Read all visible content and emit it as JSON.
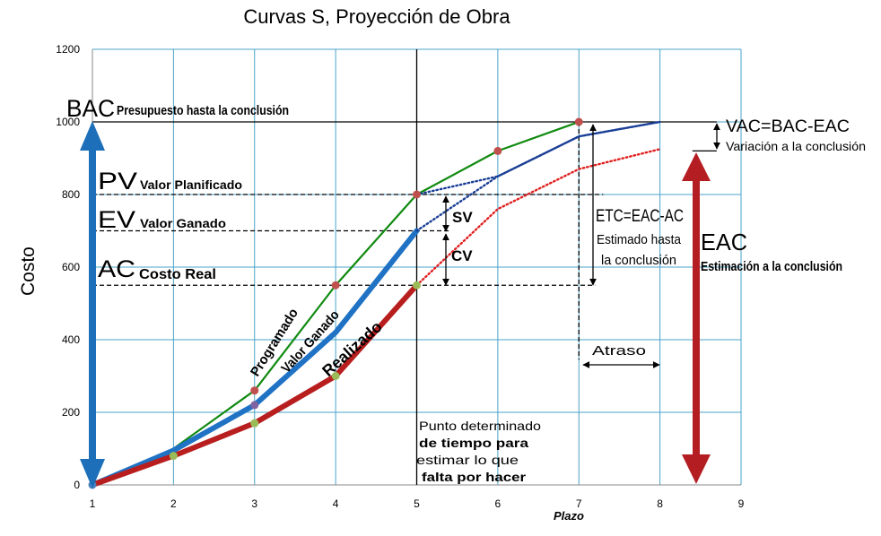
{
  "chart_data": {
    "type": "line",
    "title": "Curvas S, Proyección de Obra",
    "xlabel": "Plazo",
    "ylabel": "Costo",
    "xlim": [
      1,
      9
    ],
    "ylim": [
      0,
      1200
    ],
    "x_ticks": [
      "1",
      "2",
      "3",
      "4",
      "5",
      "6",
      "7",
      "8",
      "9"
    ],
    "y_ticks": [
      "0",
      "200",
      "400",
      "600",
      "800",
      "1000",
      "1200"
    ],
    "grid": true,
    "series": [
      {
        "name": "Programado",
        "color": "#108a10",
        "points": [
          [
            1,
            0
          ],
          [
            2,
            100
          ],
          [
            3,
            260
          ],
          [
            4,
            550
          ],
          [
            5,
            800
          ],
          [
            6,
            920
          ],
          [
            7,
            1000
          ]
        ]
      },
      {
        "name": "Programado",
        "color": "#1a3f96",
        "dotted": true,
        "points": [
          [
            5,
            800
          ],
          [
            6,
            850
          ],
          [
            7,
            960
          ],
          [
            8,
            1000
          ]
        ]
      },
      {
        "name": "Valor Ganado",
        "color": "#1f72c4",
        "points": [
          [
            1,
            0
          ],
          [
            2,
            95
          ],
          [
            3,
            220
          ],
          [
            4,
            420
          ],
          [
            5,
            700
          ]
        ]
      },
      {
        "name": "Valor Ganado",
        "color": "#1a3f96",
        "dotted": true,
        "points": [
          [
            5,
            700
          ],
          [
            6,
            850
          ],
          [
            7,
            960
          ],
          [
            8,
            1000
          ]
        ]
      },
      {
        "name": "Realizado",
        "color": "#b81e1e",
        "points": [
          [
            1,
            0
          ],
          [
            2,
            80
          ],
          [
            3,
            170
          ],
          [
            4,
            300
          ],
          [
            5,
            550
          ]
        ]
      },
      {
        "name": "Realizado",
        "color": "#e02020",
        "dotted": true,
        "points": [
          [
            5,
            550
          ],
          [
            6,
            760
          ],
          [
            7,
            870
          ],
          [
            8,
            925
          ]
        ]
      }
    ],
    "markers": [
      {
        "x": 3,
        "y": 260,
        "color": "#c0504d"
      },
      {
        "x": 4,
        "y": 550,
        "color": "#c0504d"
      },
      {
        "x": 5,
        "y": 800,
        "color": "#c0504d"
      },
      {
        "x": 6,
        "y": 920,
        "color": "#c0504d"
      },
      {
        "x": 7,
        "y": 1000,
        "color": "#c0504d"
      },
      {
        "x": 2,
        "y": 80,
        "color": "#9bbb59"
      },
      {
        "x": 3,
        "y": 170,
        "color": "#9bbb59"
      },
      {
        "x": 4,
        "y": 300,
        "color": "#9bbb59"
      },
      {
        "x": 5,
        "y": 550,
        "color": "#9bbb59"
      },
      {
        "x": 3,
        "y": 220,
        "color": "#8064a2"
      },
      {
        "x": 1,
        "y": 0,
        "color": "#4f81bd"
      }
    ],
    "ref_lines": [
      {
        "y": 1000,
        "x1": 1,
        "x2": 8.7,
        "style": "solid"
      },
      {
        "y": 920,
        "x1": 8.4,
        "x2": 8.7,
        "style": "solid"
      },
      {
        "y": 800,
        "x1": 1,
        "x2": 7.3,
        "style": "dashed"
      },
      {
        "y": 700,
        "x1": 1,
        "x2": 5.4,
        "style": "dashed"
      },
      {
        "y": 550,
        "x1": 1,
        "x2": 7.2,
        "style": "dashed"
      }
    ],
    "vertical_lines": [
      {
        "x": 5,
        "y1": 0,
        "y2": 1200,
        "style": "solid"
      },
      {
        "x": 7,
        "y1": 1000,
        "y2": 345,
        "style": "dashed"
      }
    ]
  },
  "labels": {
    "bac_abbr": "BAC",
    "bac_text": "Presupuesto hasta la conclusión",
    "pv_abbr": "PV",
    "pv_text": "Valor Planificado",
    "ev_abbr": "EV",
    "ev_text": "Valor Ganado",
    "ac_abbr": "AC",
    "ac_text": "Costo Real",
    "programado": "Programado",
    "valor_ganado": "Valor Ganado",
    "realizado": "Realizado",
    "sv": "SV",
    "cv": "CV",
    "etc_formula": "ETC=EAC-AC",
    "etc_line1": "Estimado hasta",
    "etc_line2": "la conclusión",
    "eac_abbr": "EAC",
    "eac_text": "Estimación a la conclusión",
    "vac_formula": "VAC=BAC-EAC",
    "vac_text": "Variación a la conclusión",
    "atraso": "Atraso",
    "punto_1": "Punto determinado",
    "punto_2": "de tiempo para",
    "punto_3": "estimar lo que",
    "punto_4": "falta por hacer"
  },
  "colors": {
    "grid": "#4aa3c8",
    "bac_arrow": "#1c6fb8",
    "eac_arrow": "#b41e23"
  }
}
